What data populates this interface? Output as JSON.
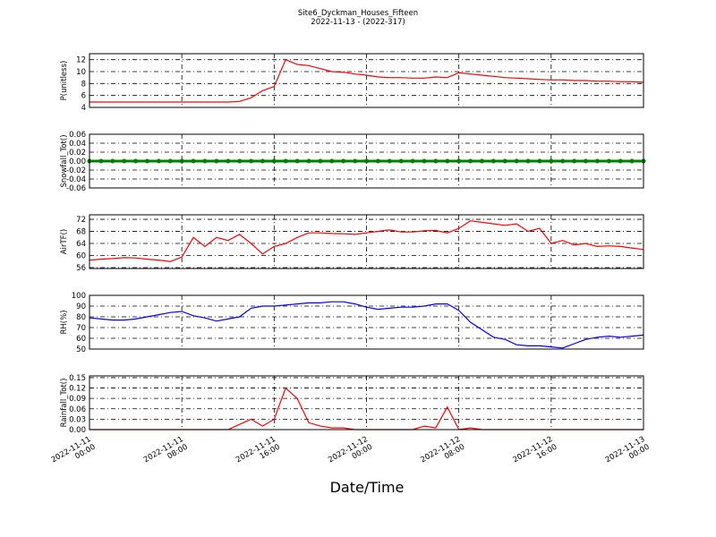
{
  "chart_data": [
    {
      "type": "line",
      "title": "Site6_Dyckman_Houses_Fifteen",
      "subtitle": "2022-11-13 - (2022-317)",
      "ylabel": "P(unitless)",
      "color": "#ff0000",
      "ylim": [
        4,
        13
      ],
      "yticks": [
        4,
        6,
        8,
        10,
        12
      ],
      "grid": true,
      "x": [
        "2022-11-11 00:00",
        "2022-11-11 01:00",
        "2022-11-11 02:00",
        "2022-11-11 03:00",
        "2022-11-11 04:00",
        "2022-11-11 05:00",
        "2022-11-11 06:00",
        "2022-11-11 07:00",
        "2022-11-11 08:00",
        "2022-11-11 09:00",
        "2022-11-11 10:00",
        "2022-11-11 11:00",
        "2022-11-11 12:00",
        "2022-11-11 13:00",
        "2022-11-11 14:00",
        "2022-11-11 15:00",
        "2022-11-11 16:00",
        "2022-11-11 17:00",
        "2022-11-11 18:00",
        "2022-11-11 19:00",
        "2022-11-11 20:00",
        "2022-11-11 21:00",
        "2022-11-11 22:00",
        "2022-11-11 23:00",
        "2022-11-12 00:00",
        "2022-11-12 01:00",
        "2022-11-12 02:00",
        "2022-11-12 03:00",
        "2022-11-12 04:00",
        "2022-11-12 05:00",
        "2022-11-12 06:00",
        "2022-11-12 07:00",
        "2022-11-12 08:00",
        "2022-11-12 09:00",
        "2022-11-12 10:00",
        "2022-11-12 11:00",
        "2022-11-12 12:00",
        "2022-11-12 13:00",
        "2022-11-12 14:00",
        "2022-11-12 15:00",
        "2022-11-12 16:00",
        "2022-11-12 17:00",
        "2022-11-12 18:00",
        "2022-11-12 19:00",
        "2022-11-12 20:00",
        "2022-11-12 21:00",
        "2022-11-12 22:00",
        "2022-11-12 23:00",
        "2022-11-13 00:00"
      ],
      "values": [
        4.9,
        4.9,
        4.9,
        4.9,
        4.9,
        4.9,
        4.9,
        4.9,
        4.9,
        4.9,
        4.9,
        4.9,
        4.9,
        5.0,
        5.6,
        6.8,
        7.5,
        12.0,
        11.2,
        11.0,
        10.5,
        10.0,
        9.9,
        9.6,
        9.4,
        9.1,
        9.0,
        9.0,
        8.9,
        8.9,
        9.1,
        9.0,
        9.8,
        9.6,
        9.4,
        9.2,
        9.0,
        8.9,
        8.8,
        8.7,
        8.6,
        8.6,
        8.5,
        8.5,
        8.4,
        8.4,
        8.3,
        8.3,
        8.2
      ]
    },
    {
      "type": "line",
      "ylabel": "Snowfall_Tot()",
      "color": "#008000",
      "markers": true,
      "ylim": [
        -0.06,
        0.06
      ],
      "yticks": [
        -0.06,
        -0.04,
        -0.02,
        {
          "value": 0,
          "label": "0.00"
        },
        0.02,
        0.04,
        0.06
      ],
      "grid": true,
      "x": [
        "2022-11-11 00:00",
        "2022-11-11 01:00",
        "2022-11-11 02:00",
        "2022-11-11 03:00",
        "2022-11-11 04:00",
        "2022-11-11 05:00",
        "2022-11-11 06:00",
        "2022-11-11 07:00",
        "2022-11-11 08:00",
        "2022-11-11 09:00",
        "2022-11-11 10:00",
        "2022-11-11 11:00",
        "2022-11-11 12:00",
        "2022-11-11 13:00",
        "2022-11-11 14:00",
        "2022-11-11 15:00",
        "2022-11-11 16:00",
        "2022-11-11 17:00",
        "2022-11-11 18:00",
        "2022-11-11 19:00",
        "2022-11-11 20:00",
        "2022-11-11 21:00",
        "2022-11-11 22:00",
        "2022-11-11 23:00",
        "2022-11-12 00:00",
        "2022-11-12 01:00",
        "2022-11-12 02:00",
        "2022-11-12 03:00",
        "2022-11-12 04:00",
        "2022-11-12 05:00",
        "2022-11-12 06:00",
        "2022-11-12 07:00",
        "2022-11-12 08:00",
        "2022-11-12 09:00",
        "2022-11-12 10:00",
        "2022-11-12 11:00",
        "2022-11-12 12:00",
        "2022-11-12 13:00",
        "2022-11-12 14:00",
        "2022-11-12 15:00",
        "2022-11-12 16:00",
        "2022-11-12 17:00",
        "2022-11-12 18:00",
        "2022-11-12 19:00",
        "2022-11-12 20:00",
        "2022-11-12 21:00",
        "2022-11-12 22:00",
        "2022-11-12 23:00",
        "2022-11-13 00:00"
      ],
      "values": [
        0,
        0,
        0,
        0,
        0,
        0,
        0,
        0,
        0,
        0,
        0,
        0,
        0,
        0,
        0,
        0,
        0,
        0,
        0,
        0,
        0,
        0,
        0,
        0,
        0,
        0,
        0,
        0,
        0,
        0,
        0,
        0,
        0,
        0,
        0,
        0,
        0,
        0,
        0,
        0,
        0,
        0,
        0,
        0,
        0,
        0,
        0,
        0,
        0
      ]
    },
    {
      "type": "line",
      "ylabel": "AirTF()",
      "color": "#ff0000",
      "ylim": [
        55.7,
        73.5
      ],
      "yticks": [
        56,
        60,
        64,
        68,
        72
      ],
      "grid": true,
      "x": [
        "2022-11-11 00:00",
        "2022-11-11 01:00",
        "2022-11-11 02:00",
        "2022-11-11 03:00",
        "2022-11-11 04:00",
        "2022-11-11 05:00",
        "2022-11-11 06:00",
        "2022-11-11 07:00",
        "2022-11-11 08:00",
        "2022-11-11 09:00",
        "2022-11-11 10:00",
        "2022-11-11 11:00",
        "2022-11-11 12:00",
        "2022-11-11 13:00",
        "2022-11-11 14:00",
        "2022-11-11 15:00",
        "2022-11-11 16:00",
        "2022-11-11 17:00",
        "2022-11-11 18:00",
        "2022-11-11 19:00",
        "2022-11-11 20:00",
        "2022-11-11 21:00",
        "2022-11-11 22:00",
        "2022-11-11 23:00",
        "2022-11-12 00:00",
        "2022-11-12 01:00",
        "2022-11-12 02:00",
        "2022-11-12 03:00",
        "2022-11-12 04:00",
        "2022-11-12 05:00",
        "2022-11-12 06:00",
        "2022-11-12 07:00",
        "2022-11-12 08:00",
        "2022-11-12 09:00",
        "2022-11-12 10:00",
        "2022-11-12 11:00",
        "2022-11-12 12:00",
        "2022-11-12 13:00",
        "2022-11-12 14:00",
        "2022-11-12 15:00",
        "2022-11-12 16:00",
        "2022-11-12 17:00",
        "2022-11-12 18:00",
        "2022-11-12 19:00",
        "2022-11-12 20:00",
        "2022-11-12 21:00",
        "2022-11-12 22:00",
        "2022-11-12 23:00",
        "2022-11-13 00:00"
      ],
      "values": [
        58.5,
        58.8,
        59,
        59.3,
        59.2,
        58.8,
        58.5,
        58,
        59.5,
        66,
        63,
        66,
        65,
        67,
        64,
        60.5,
        63,
        64,
        66,
        67.5,
        67.5,
        67.3,
        67.2,
        67,
        67.5,
        68,
        68.5,
        67.8,
        67.8,
        68.2,
        68.3,
        67.5,
        69,
        71.5,
        71,
        70.5,
        70,
        70.5,
        68,
        69,
        64,
        65,
        63.5,
        64,
        63,
        63.2,
        63,
        62.5,
        62
      ]
    },
    {
      "type": "line",
      "ylabel": "RH(%)",
      "color": "#0000ff",
      "ylim": [
        50,
        100
      ],
      "yticks": [
        50,
        60,
        70,
        80,
        90,
        100
      ],
      "grid": true,
      "x": [
        "2022-11-11 00:00",
        "2022-11-11 01:00",
        "2022-11-11 02:00",
        "2022-11-11 03:00",
        "2022-11-11 04:00",
        "2022-11-11 05:00",
        "2022-11-11 06:00",
        "2022-11-11 07:00",
        "2022-11-11 08:00",
        "2022-11-11 09:00",
        "2022-11-11 10:00",
        "2022-11-11 11:00",
        "2022-11-11 12:00",
        "2022-11-11 13:00",
        "2022-11-11 14:00",
        "2022-11-11 15:00",
        "2022-11-11 16:00",
        "2022-11-11 17:00",
        "2022-11-11 18:00",
        "2022-11-11 19:00",
        "2022-11-11 20:00",
        "2022-11-11 21:00",
        "2022-11-11 22:00",
        "2022-11-11 23:00",
        "2022-11-12 00:00",
        "2022-11-12 01:00",
        "2022-11-12 02:00",
        "2022-11-12 03:00",
        "2022-11-12 04:00",
        "2022-11-12 05:00",
        "2022-11-12 06:00",
        "2022-11-12 07:00",
        "2022-11-12 08:00",
        "2022-11-12 09:00",
        "2022-11-12 10:00",
        "2022-11-12 11:00",
        "2022-11-12 12:00",
        "2022-11-12 13:00",
        "2022-11-12 14:00",
        "2022-11-12 15:00",
        "2022-11-12 16:00",
        "2022-11-12 17:00",
        "2022-11-12 18:00",
        "2022-11-12 19:00",
        "2022-11-12 20:00",
        "2022-11-12 21:00",
        "2022-11-12 22:00",
        "2022-11-12 23:00",
        "2022-11-13 00:00"
      ],
      "values": [
        79,
        78,
        77,
        77,
        78,
        80,
        82,
        84,
        85,
        81,
        79,
        76,
        78,
        80,
        88,
        90,
        90,
        91,
        92,
        93,
        93,
        94,
        94,
        92,
        89,
        87,
        88,
        89,
        89,
        90,
        92,
        92,
        86,
        75,
        68,
        61,
        59,
        54,
        53,
        53,
        52,
        51,
        55,
        59,
        61,
        62,
        61,
        62,
        63
      ]
    },
    {
      "type": "line",
      "ylabel": "Rainfall_Tot()",
      "xlabel": "Date/Time",
      "color": "#ff0000",
      "ylim": [
        0,
        0.155
      ],
      "yticks": [
        {
          "value": 0,
          "label": "0.00"
        },
        0.03,
        0.06,
        0.09,
        0.12,
        0.15
      ],
      "grid": true,
      "xlim": [
        "2022-11-11 00:00",
        "2022-11-13 00:00"
      ],
      "xticks": [
        "2022-11-11 00:00",
        "2022-11-11 08:00",
        "2022-11-11 16:00",
        "2022-11-12 00:00",
        "2022-11-12 08:00",
        "2022-11-12 16:00",
        "2022-11-13 00:00"
      ],
      "x": [
        "2022-11-11 00:00",
        "2022-11-11 01:00",
        "2022-11-11 02:00",
        "2022-11-11 03:00",
        "2022-11-11 04:00",
        "2022-11-11 05:00",
        "2022-11-11 06:00",
        "2022-11-11 07:00",
        "2022-11-11 08:00",
        "2022-11-11 09:00",
        "2022-11-11 10:00",
        "2022-11-11 11:00",
        "2022-11-11 12:00",
        "2022-11-11 13:00",
        "2022-11-11 14:00",
        "2022-11-11 15:00",
        "2022-11-11 16:00",
        "2022-11-11 17:00",
        "2022-11-11 18:00",
        "2022-11-11 19:00",
        "2022-11-11 20:00",
        "2022-11-11 21:00",
        "2022-11-11 22:00",
        "2022-11-11 23:00",
        "2022-11-12 00:00",
        "2022-11-12 01:00",
        "2022-11-12 02:00",
        "2022-11-12 03:00",
        "2022-11-12 04:00",
        "2022-11-12 05:00",
        "2022-11-12 06:00",
        "2022-11-12 07:00",
        "2022-11-12 08:00",
        "2022-11-12 09:00",
        "2022-11-12 10:00",
        "2022-11-12 11:00",
        "2022-11-12 12:00",
        "2022-11-12 13:00",
        "2022-11-12 14:00",
        "2022-11-12 15:00",
        "2022-11-12 16:00",
        "2022-11-12 17:00",
        "2022-11-12 18:00",
        "2022-11-12 19:00",
        "2022-11-12 20:00",
        "2022-11-12 21:00",
        "2022-11-12 22:00",
        "2022-11-12 23:00",
        "2022-11-13 00:00"
      ],
      "values": [
        0,
        0,
        0,
        0,
        0,
        0,
        0,
        0,
        0,
        0,
        0,
        0,
        0,
        0.015,
        0.03,
        0.01,
        0.03,
        0.12,
        0.09,
        0.02,
        0.01,
        0.005,
        0.005,
        0,
        0,
        0,
        0,
        0,
        0,
        0.01,
        0.005,
        0.065,
        0,
        0.005,
        0,
        0,
        0,
        0,
        0,
        0,
        0,
        0,
        0,
        0,
        0,
        0,
        0,
        0,
        0
      ]
    }
  ]
}
